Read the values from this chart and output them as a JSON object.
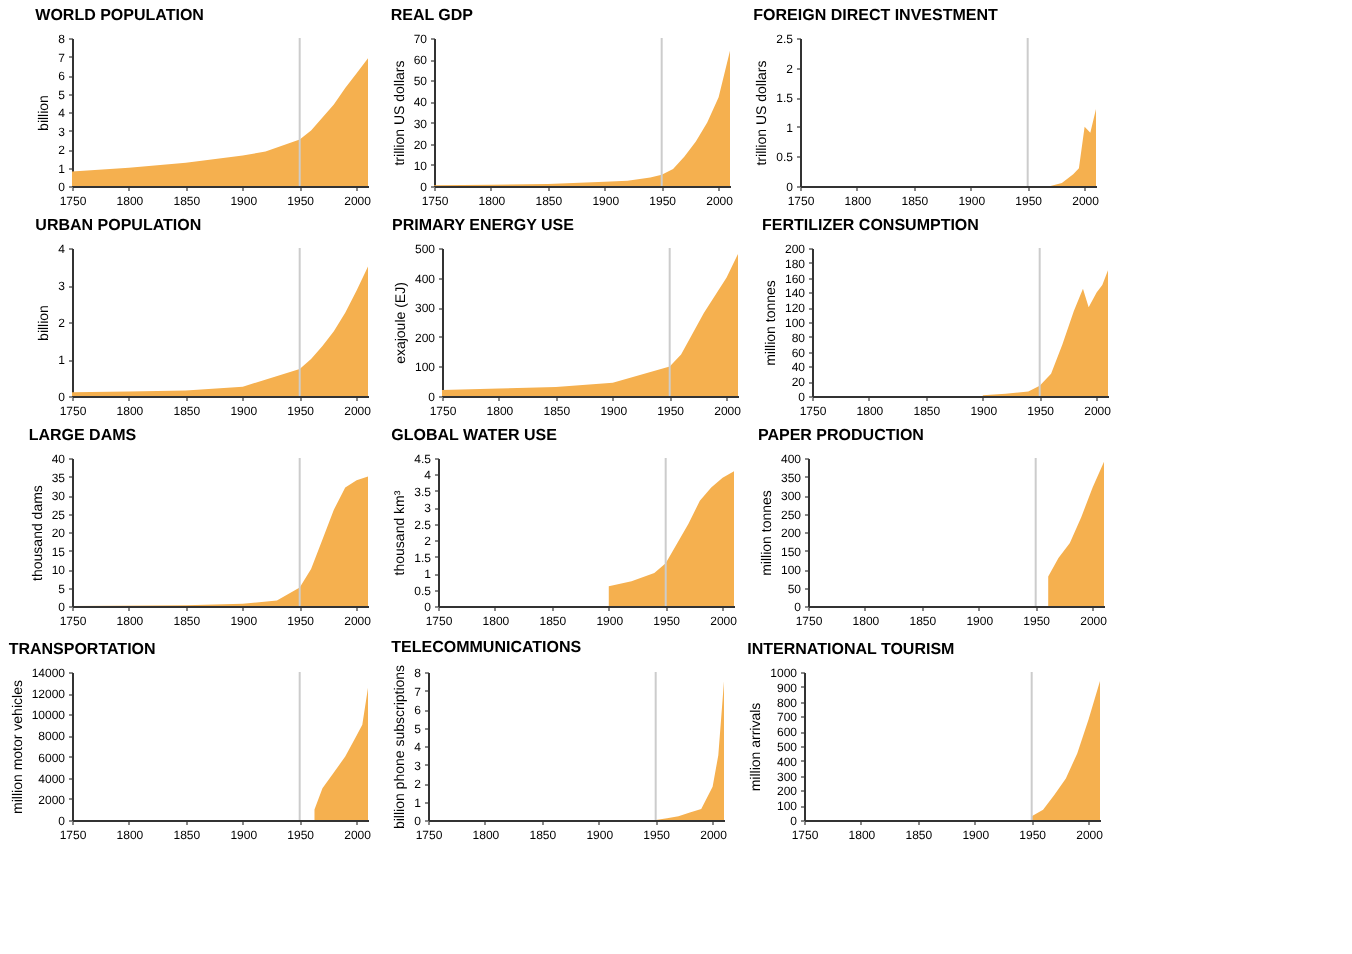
{
  "chart_data": [
    {
      "type": "area",
      "title": "WORLD POPULATION",
      "ylabel": "billion",
      "x": [
        1750,
        1800,
        1850,
        1900,
        1920,
        1940,
        1950,
        1960,
        1970,
        1980,
        1990,
        2000,
        2010
      ],
      "values": [
        0.79,
        0.98,
        1.26,
        1.65,
        1.86,
        2.3,
        2.52,
        3.0,
        3.7,
        4.4,
        5.3,
        6.1,
        6.9
      ],
      "color": "#f5b04f",
      "xlim": [
        1750,
        2010
      ],
      "xticks": [
        1750,
        1800,
        1850,
        1900,
        1950,
        2000
      ],
      "ylim": [
        0,
        8
      ],
      "yticks": [
        0,
        1,
        2,
        3,
        4,
        5,
        6,
        7,
        8
      ],
      "ref_lines": [
        {
          "axis": "x",
          "value": 1950,
          "color": "#cccccc"
        }
      ]
    },
    {
      "type": "area",
      "title": "REAL GDP",
      "ylabel": "trillion US dollars",
      "x": [
        1750,
        1800,
        1850,
        1900,
        1920,
        1940,
        1950,
        1960,
        1970,
        1980,
        1990,
        2000,
        2010
      ],
      "values": [
        0.4,
        0.6,
        1,
        2,
        2.5,
        4,
        5.3,
        8,
        14,
        21,
        30,
        42,
        64
      ],
      "color": "#f5b04f",
      "xlim": [
        1750,
        2010
      ],
      "xticks": [
        1750,
        1800,
        1850,
        1900,
        1950,
        2000
      ],
      "ylim": [
        0,
        70
      ],
      "yticks": [
        0,
        10,
        20,
        30,
        40,
        50,
        60,
        70
      ],
      "ref_lines": [
        {
          "axis": "x",
          "value": 1950,
          "color": "#cccccc"
        }
      ]
    },
    {
      "type": "area",
      "title": "FOREIGN DIRECT INVESTMENT",
      "ylabel": "trillion US dollars",
      "x": [
        1970,
        1980,
        1990,
        1995,
        2000,
        2005,
        2010
      ],
      "values": [
        0,
        0.05,
        0.2,
        0.3,
        1.0,
        0.9,
        1.3
      ],
      "color": "#f5b04f",
      "xlim": [
        1750,
        2010
      ],
      "xticks": [
        1750,
        1800,
        1850,
        1900,
        1950,
        2000
      ],
      "ylim": [
        0,
        2.5
      ],
      "yticks": [
        0,
        0.5,
        1,
        1.5,
        2,
        2.5
      ],
      "ref_lines": [
        {
          "axis": "x",
          "value": 1950,
          "color": "#cccccc"
        }
      ]
    },
    {
      "type": "area",
      "title": "URBAN POPULATION",
      "ylabel": "billion",
      "x": [
        1750,
        1800,
        1850,
        1900,
        1950,
        1960,
        1970,
        1980,
        1990,
        2000,
        2010
      ],
      "values": [
        0.1,
        0.12,
        0.15,
        0.25,
        0.73,
        1.0,
        1.35,
        1.75,
        2.25,
        2.85,
        3.5
      ],
      "color": "#f5b04f",
      "xlim": [
        1750,
        2010
      ],
      "xticks": [
        1750,
        1800,
        1850,
        1900,
        1950,
        2000
      ],
      "ylim": [
        0,
        4
      ],
      "yticks": [
        0,
        1,
        2,
        3,
        4
      ],
      "ref_lines": [
        {
          "axis": "x",
          "value": 1950,
          "color": "#cccccc"
        }
      ]
    },
    {
      "type": "area",
      "title": "PRIMARY ENERGY USE",
      "ylabel": "exajoule (EJ)",
      "x": [
        1750,
        1800,
        1850,
        1900,
        1950,
        1960,
        1970,
        1980,
        1990,
        2000,
        2010
      ],
      "values": [
        20,
        25,
        30,
        45,
        100,
        140,
        210,
        280,
        340,
        400,
        480
      ],
      "color": "#f5b04f",
      "xlim": [
        1750,
        2010
      ],
      "xticks": [
        1750,
        1800,
        1850,
        1900,
        1950,
        2000
      ],
      "ylim": [
        0,
        500
      ],
      "yticks": [
        0,
        100,
        200,
        300,
        400,
        500
      ],
      "ref_lines": [
        {
          "axis": "x",
          "value": 1950,
          "color": "#cccccc"
        }
      ]
    },
    {
      "type": "area",
      "title": "FERTILIZER CONSUMPTION",
      "ylabel": "million tonnes",
      "x": [
        1900,
        1920,
        1940,
        1950,
        1960,
        1970,
        1980,
        1988,
        1993,
        2000,
        2005,
        2010
      ],
      "values": [
        1,
        3,
        6,
        14,
        30,
        70,
        115,
        145,
        120,
        140,
        150,
        170
      ],
      "color": "#f5b04f",
      "xlim": [
        1750,
        2010
      ],
      "xticks": [
        1750,
        1800,
        1850,
        1900,
        1950,
        2000
      ],
      "ylim": [
        0,
        200
      ],
      "yticks": [
        0,
        20,
        40,
        60,
        80,
        100,
        120,
        140,
        160,
        180,
        200
      ],
      "ref_lines": [
        {
          "axis": "x",
          "value": 1950,
          "color": "#cccccc"
        }
      ]
    },
    {
      "type": "area",
      "title": "LARGE DAMS",
      "ylabel": "thousand dams",
      "x": [
        1750,
        1850,
        1900,
        1930,
        1950,
        1960,
        1970,
        1980,
        1990,
        2000,
        2010
      ],
      "values": [
        0,
        0.2,
        0.6,
        1.5,
        5,
        10,
        18,
        26,
        32,
        34,
        35
      ],
      "color": "#f5b04f",
      "xlim": [
        1750,
        2010
      ],
      "xticks": [
        1750,
        1800,
        1850,
        1900,
        1950,
        2000
      ],
      "ylim": [
        0,
        40
      ],
      "yticks": [
        0,
        5,
        10,
        15,
        20,
        25,
        30,
        35,
        40
      ],
      "ref_lines": [
        {
          "axis": "x",
          "value": 1950,
          "color": "#cccccc"
        }
      ]
    },
    {
      "type": "area",
      "title": "GLOBAL WATER USE",
      "ylabel": "thousand km³",
      "x": [
        1900,
        1920,
        1940,
        1950,
        1960,
        1970,
        1980,
        1990,
        2000,
        2010
      ],
      "values": [
        0.6,
        0.75,
        1.0,
        1.3,
        1.9,
        2.5,
        3.2,
        3.6,
        3.9,
        4.1
      ],
      "color": "#f5b04f",
      "xlim": [
        1750,
        2010
      ],
      "xticks": [
        1750,
        1800,
        1850,
        1900,
        1950,
        2000
      ],
      "ylim": [
        0,
        4.5
      ],
      "yticks": [
        0,
        0.5,
        1,
        1.5,
        2,
        2.5,
        3,
        3.5,
        4,
        4.5
      ],
      "ref_lines": [
        {
          "axis": "x",
          "value": 1950,
          "color": "#cccccc"
        }
      ]
    },
    {
      "type": "area",
      "title": "PAPER PRODUCTION",
      "ylabel": "million tonnes",
      "x": [
        1961,
        1970,
        1980,
        1990,
        2000,
        2010
      ],
      "values": [
        80,
        130,
        170,
        240,
        320,
        390
      ],
      "color": "#f5b04f",
      "xlim": [
        1750,
        2010
      ],
      "xticks": [
        1750,
        1800,
        1850,
        1900,
        1950,
        2000
      ],
      "ylim": [
        0,
        400
      ],
      "yticks": [
        0,
        50,
        100,
        150,
        200,
        250,
        300,
        350,
        400
      ],
      "ref_lines": [
        {
          "axis": "x",
          "value": 1950,
          "color": "#cccccc"
        }
      ]
    },
    {
      "type": "area",
      "title": "TRANSPORTATION",
      "ylabel": "million motor vehicles",
      "x": [
        1963,
        1970,
        1980,
        1990,
        2000,
        2005,
        2010
      ],
      "values": [
        1000,
        3000,
        4500,
        6000,
        8000,
        9000,
        12500
      ],
      "color": "#f5b04f",
      "xlim": [
        1750,
        2010
      ],
      "xticks": [
        1750,
        1800,
        1850,
        1900,
        1950,
        2000
      ],
      "ylim": [
        0,
        14000
      ],
      "yticks": [
        0,
        2000,
        4000,
        6000,
        8000,
        10000,
        12000,
        14000
      ],
      "ref_lines": [
        {
          "axis": "x",
          "value": 1950,
          "color": "#cccccc"
        }
      ]
    },
    {
      "type": "area",
      "title": "TELECOMMUNICATIONS",
      "ylabel": "billion phone subscriptions",
      "x": [
        1950,
        1960,
        1970,
        1980,
        1990,
        2000,
        2005,
        2010
      ],
      "values": [
        0,
        0.1,
        0.2,
        0.4,
        0.6,
        1.8,
        3.5,
        7.5
      ],
      "color": "#f5b04f",
      "xlim": [
        1750,
        2010
      ],
      "xticks": [
        1750,
        1800,
        1850,
        1900,
        1950,
        2000
      ],
      "ylim": [
        0,
        8
      ],
      "yticks": [
        0,
        1,
        2,
        3,
        4,
        5,
        6,
        7,
        8
      ],
      "ref_lines": [
        {
          "axis": "x",
          "value": 1950,
          "color": "#cccccc"
        }
      ]
    },
    {
      "type": "area",
      "title": "INTERNATIONAL TOURISM",
      "ylabel": "million arrivals",
      "x": [
        1950,
        1960,
        1970,
        1980,
        1990,
        2000,
        2010
      ],
      "values": [
        25,
        70,
        170,
        280,
        450,
        680,
        940
      ],
      "color": "#f5b04f",
      "xlim": [
        1750,
        2010
      ],
      "xticks": [
        1750,
        1800,
        1850,
        1900,
        1950,
        2000
      ],
      "ylim": [
        0,
        1000
      ],
      "yticks": [
        0,
        100,
        200,
        300,
        400,
        500,
        600,
        700,
        800,
        900,
        1000
      ],
      "ref_lines": [
        {
          "axis": "x",
          "value": 1950,
          "color": "#cccccc"
        }
      ]
    }
  ]
}
